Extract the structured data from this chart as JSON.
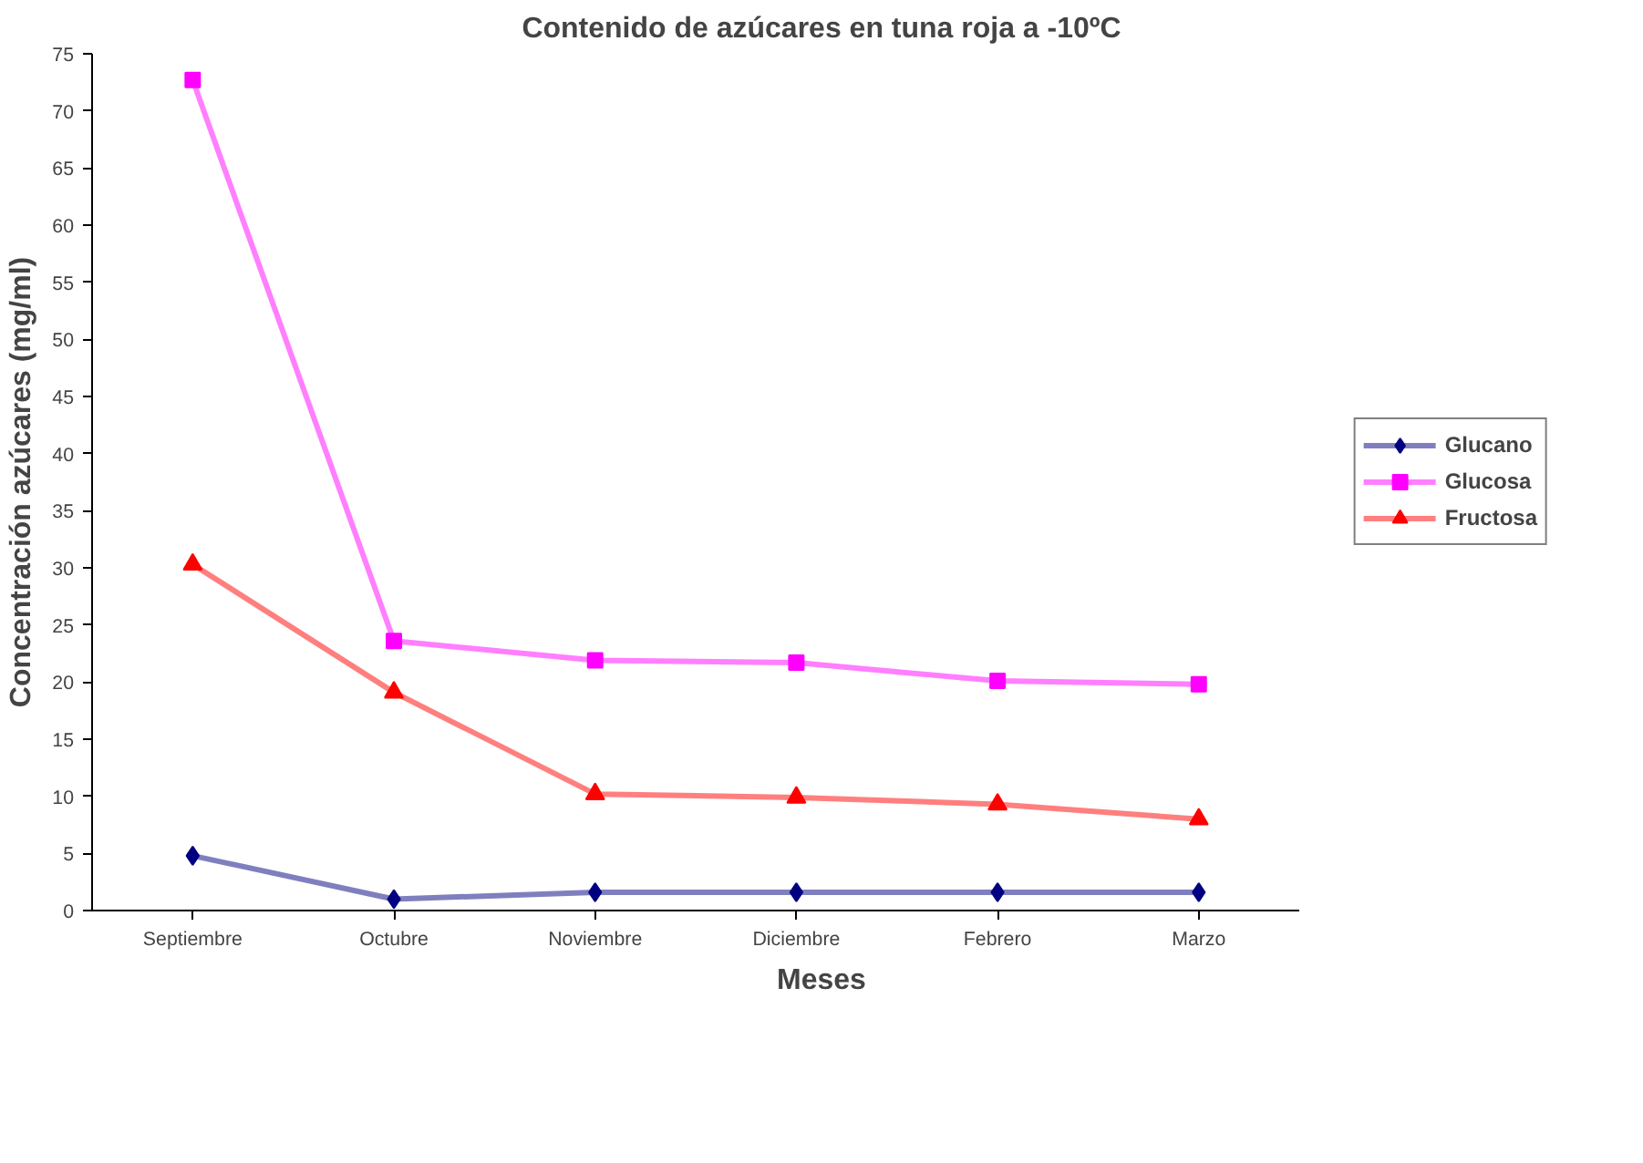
{
  "chart_data": {
    "type": "line",
    "title": "Contenido de azúcares en tuna roja a -10ºC",
    "xlabel": "Meses",
    "ylabel": "Concentración azúcares (mg/ml)",
    "categories": [
      "Septiembre",
      "Octubre",
      "Noviembre",
      "Diciembre",
      "Febrero",
      "Marzo"
    ],
    "series": [
      {
        "name": "Glucano",
        "color": "#000080",
        "marker": "diamond",
        "values": [
          4.8,
          1.0,
          1.6,
          1.6,
          1.6,
          1.6
        ]
      },
      {
        "name": "Glucosa",
        "color": "#ff00ff",
        "marker": "square",
        "values": [
          72.7,
          23.6,
          21.9,
          21.7,
          20.1,
          19.8
        ]
      },
      {
        "name": "Fructosa",
        "color": "#ff0000",
        "marker": "triangle",
        "values": [
          30.3,
          19.1,
          10.2,
          9.9,
          9.3,
          8.0
        ]
      }
    ],
    "ylim": [
      0,
      75
    ],
    "yticks": [
      0,
      5,
      10,
      15,
      20,
      25,
      30,
      35,
      40,
      45,
      50,
      55,
      60,
      65,
      70,
      75
    ],
    "grid": false,
    "legend": "right"
  }
}
